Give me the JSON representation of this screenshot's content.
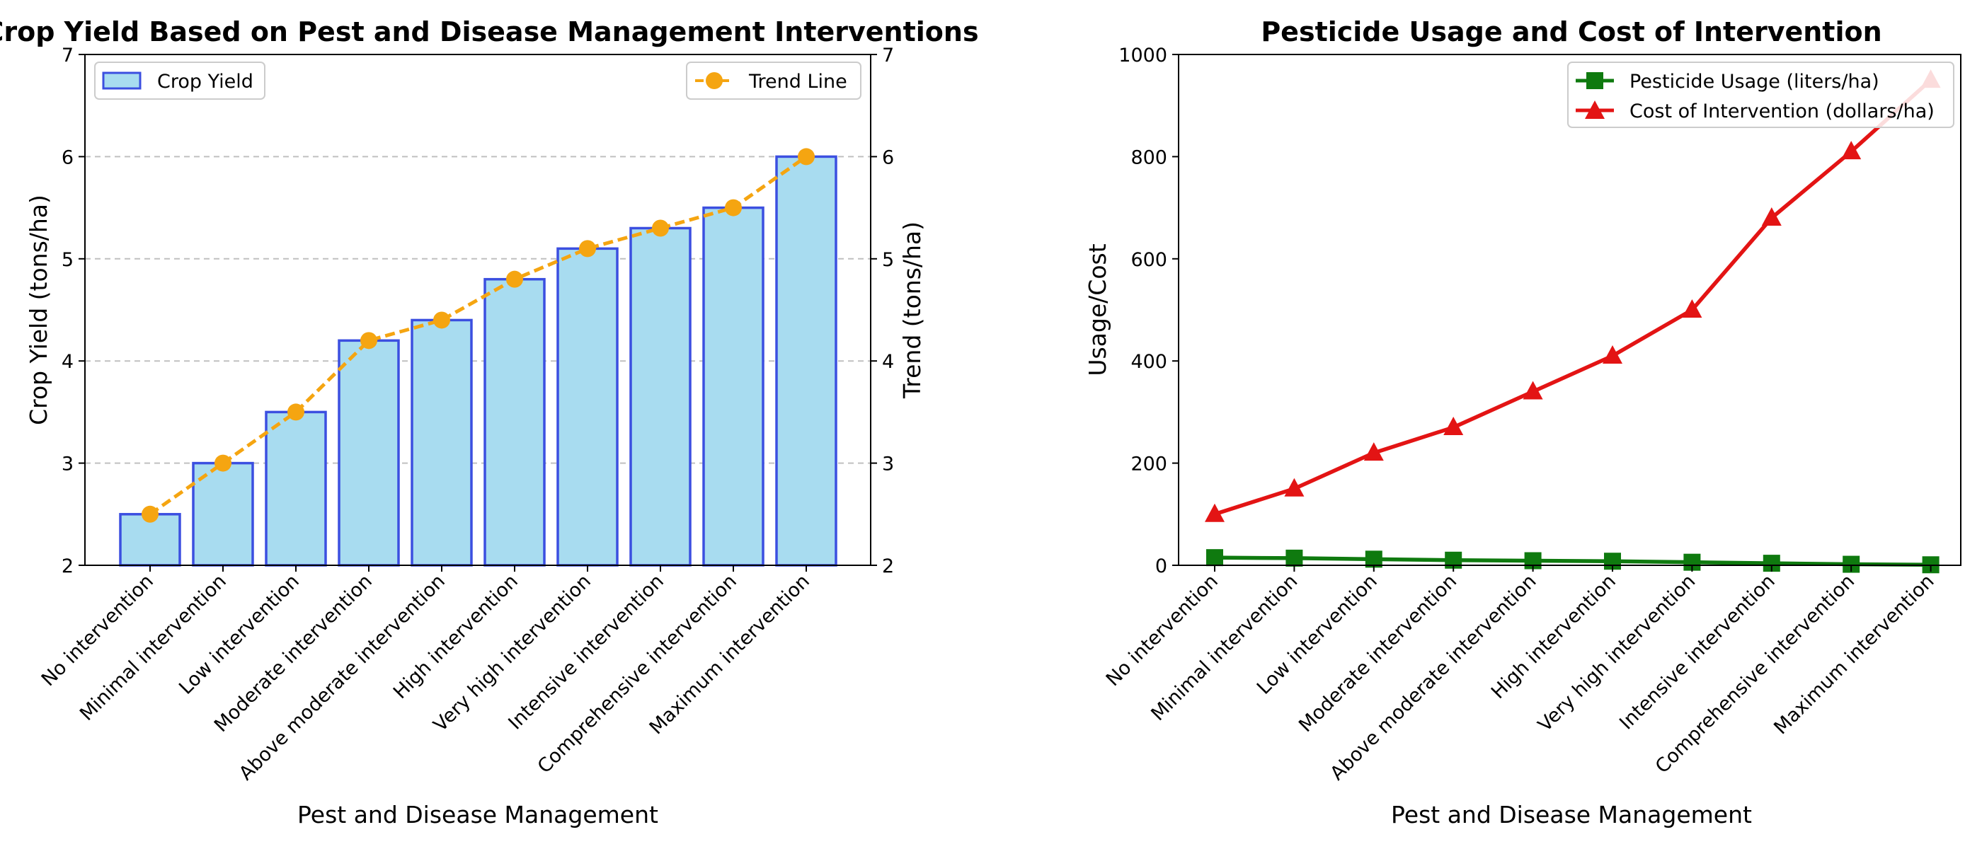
{
  "chart_data": [
    {
      "type": "bar",
      "title": "Crop Yield Based on Pest and Disease Management Interventions",
      "xlabel": "Pest and Disease Management",
      "ylabel": "Crop Yield (tons/ha)",
      "ylabel_right": "Trend (tons/ha)",
      "ylim": [
        2,
        7
      ],
      "yticks": [
        2,
        3,
        4,
        5,
        6,
        7
      ],
      "grid": "y-dashed",
      "categories": [
        "No intervention",
        "Minimal intervention",
        "Low intervention",
        "Moderate intervention",
        "Above moderate intervention",
        "High intervention",
        "Very high intervention",
        "Intensive intervention",
        "Comprehensive intervention",
        "Maximum intervention"
      ],
      "series": [
        {
          "name": "Crop Yield",
          "kind": "bar",
          "color": "#a8dcf0",
          "edge": "#3b4fe0",
          "values": [
            2.5,
            3.0,
            3.5,
            4.2,
            4.4,
            4.8,
            5.1,
            5.3,
            5.5,
            6.0
          ]
        },
        {
          "name": "Trend Line",
          "kind": "line-dashed",
          "color": "#f5a511",
          "values": [
            2.5,
            3.0,
            3.5,
            4.2,
            4.4,
            4.8,
            5.1,
            5.3,
            5.5,
            6.0
          ]
        }
      ],
      "legend_bar": "top-left",
      "legend_line": "top-right"
    },
    {
      "type": "line",
      "title": "Pesticide Usage and Cost of Intervention",
      "xlabel": "Pest and Disease Management",
      "ylabel": "Usage/Cost",
      "ylim": [
        0,
        1000
      ],
      "yticks": [
        0,
        200,
        400,
        600,
        800,
        1000
      ],
      "grid": "off",
      "categories": [
        "No intervention",
        "Minimal intervention",
        "Low intervention",
        "Moderate intervention",
        "Above moderate intervention",
        "High intervention",
        "Very high intervention",
        "Intensive intervention",
        "Comprehensive intervention",
        "Maximum intervention"
      ],
      "series": [
        {
          "name": "Pesticide Usage (liters/ha)",
          "marker": "square",
          "color": "#0f7a0f",
          "values": [
            15,
            14,
            12,
            10,
            9,
            8,
            6,
            4,
            2,
            1
          ]
        },
        {
          "name": "Cost of Intervention (dollars/ha)",
          "marker": "triangle",
          "color": "#e31414",
          "values": [
            100,
            150,
            220,
            270,
            340,
            410,
            500,
            680,
            810,
            950
          ]
        }
      ],
      "legend": "top-right"
    }
  ]
}
